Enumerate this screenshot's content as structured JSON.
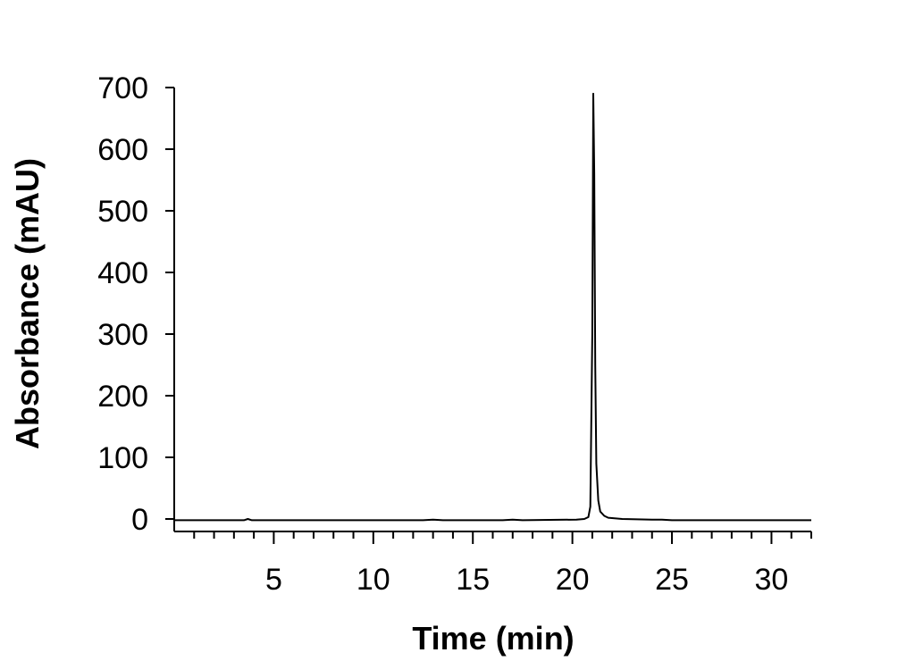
{
  "chart_data": {
    "type": "line",
    "title": "",
    "xlabel": "Time (min)",
    "ylabel": "Absorbance (mAU)",
    "xlim": [
      0,
      32
    ],
    "ylim": [
      -20,
      700
    ],
    "x_ticks": [
      5,
      10,
      15,
      20,
      25,
      30
    ],
    "x_tick_labels": [
      "5",
      "10",
      "15",
      "20",
      "25",
      "30"
    ],
    "x_minor_tick_step": 1,
    "y_ticks": [
      0,
      100,
      200,
      300,
      400,
      500,
      600,
      700
    ],
    "y_tick_labels": [
      "0",
      "100",
      "200",
      "300",
      "400",
      "500",
      "600",
      "700"
    ],
    "grid": false,
    "legend": "none",
    "colors": {
      "line": "#000000",
      "axis": "#000000"
    },
    "series": [
      {
        "x": [
          0,
          3.5,
          3.7,
          3.9,
          10,
          12.5,
          13,
          13.5,
          15,
          16.5,
          17,
          17.5,
          20.2,
          20.6,
          20.8,
          20.9,
          21.0,
          21.05,
          21.1,
          21.15,
          21.2,
          21.3,
          21.4,
          21.6,
          21.8,
          22.5,
          24,
          24.5,
          25,
          32
        ],
        "y": [
          -2,
          -2,
          0,
          -2,
          -2,
          -2,
          -1,
          -2,
          -2,
          -2,
          -1,
          -2,
          -1,
          0,
          3,
          20,
          300,
          690,
          560,
          250,
          90,
          30,
          12,
          5,
          2,
          0,
          -1,
          -1,
          -2,
          -2
        ]
      }
    ]
  }
}
